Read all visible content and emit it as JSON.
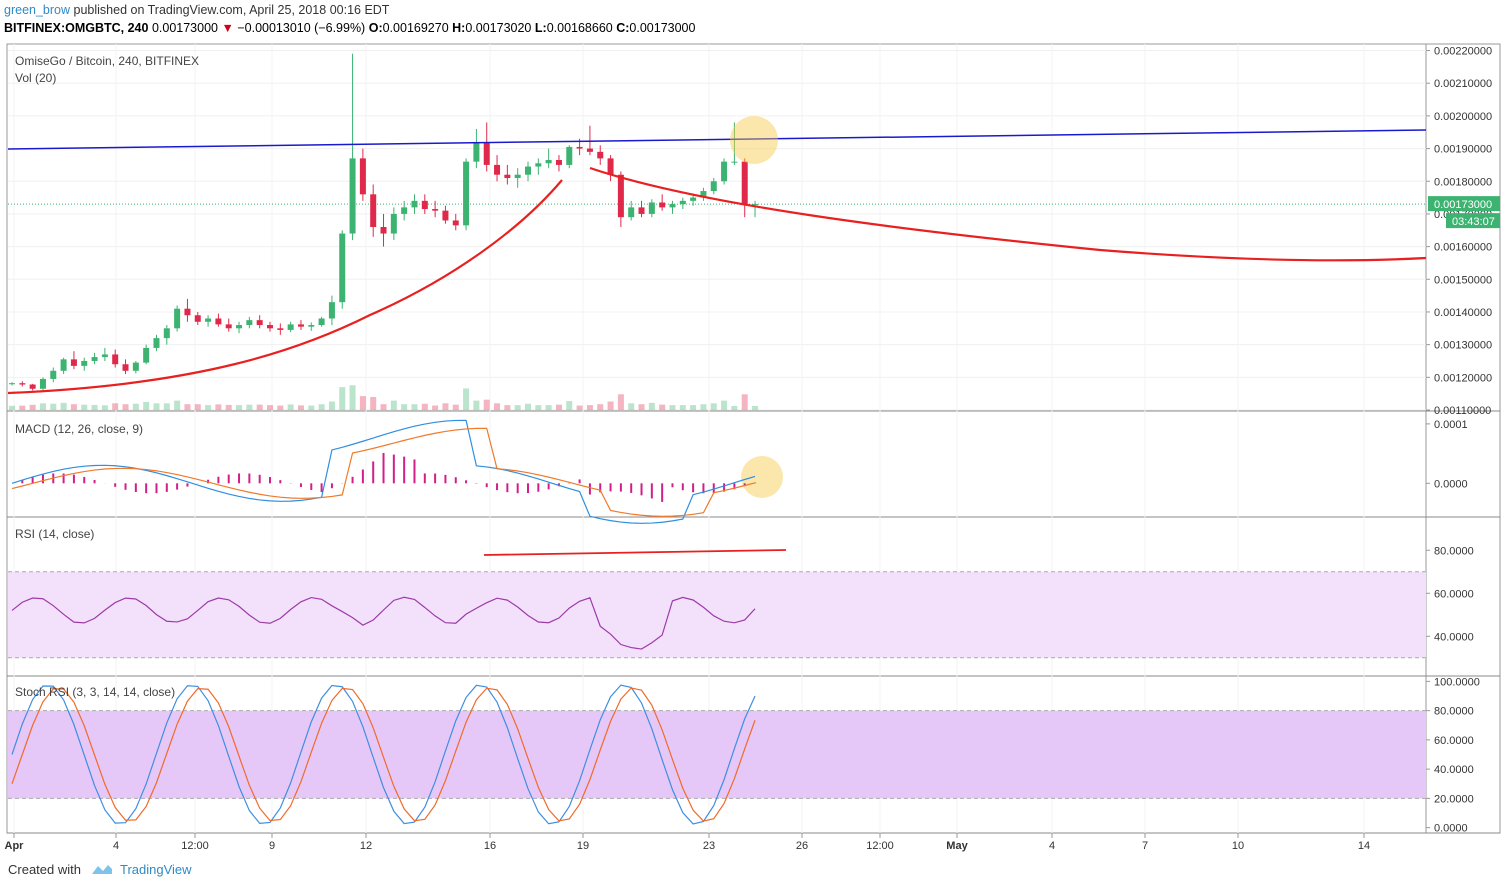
{
  "header": {
    "user": "green_brow",
    "published": "published on TradingView.com, April 25, 2018 00:16 EDT",
    "symbol": "BITFINEX:OMGBTC, 240",
    "last": "0.00173000",
    "change_arrow": "▼",
    "change": "−0.00013010 (−6.99%)",
    "o_label": "O:",
    "o": "0.00169270",
    "h_label": "H:",
    "h": "0.00173020",
    "l_label": "L:",
    "l": "0.00168660",
    "c_label": "C:",
    "c": "0.00173000"
  },
  "footer": {
    "created": "Created with",
    "brand": "TradingView"
  },
  "colors": {
    "up": "#3cb371",
    "down": "#e0294a",
    "trend_blue": "#1a1acd",
    "trend_red": "#e82020",
    "macd": "#2f8fe0",
    "signal": "#f07a2a",
    "hist": "#d31e8a",
    "rsi": "#9c3ba8",
    "rsi_band": "#f3e1fb",
    "stoch_band": "#e6c8f8",
    "stoch_k": "#3f8ee0",
    "stoch_d": "#f06a2a",
    "highlight": "#f7c948"
  },
  "chart_data": {
    "type": "candlestick",
    "title": "OmiseGo / Bitcoin, 240, BITFINEX",
    "volume_label": "Vol (20)",
    "price_axis_ticks": [
      "0.00220000",
      "0.00210000",
      "0.00200000",
      "0.00190000",
      "0.00180000",
      "0.00170000",
      "0.00160000",
      "0.00150000",
      "0.00140000",
      "0.00130000",
      "0.00120000",
      "0.00110000"
    ],
    "price_range": [
      0.0011,
      0.00222
    ],
    "last_price_tag": "0.00173000",
    "countdown_tag": "03:43:07",
    "x_axis_ticks": [
      "Apr",
      "4",
      "12:00",
      "9",
      "12",
      "16",
      "19",
      "23",
      "26",
      "12:00",
      "May",
      "4",
      "7",
      "10",
      "14"
    ],
    "candles": [
      [
        0.00118,
        0.001185,
        0.001175,
        0.001182
      ],
      [
        0.001182,
        0.001188,
        0.001172,
        0.001178
      ],
      [
        0.001178,
        0.00118,
        0.00116,
        0.001165
      ],
      [
        0.001165,
        0.0012,
        0.00116,
        0.001195
      ],
      [
        0.001195,
        0.00123,
        0.001185,
        0.00122
      ],
      [
        0.00122,
        0.00126,
        0.00121,
        0.001255
      ],
      [
        0.001255,
        0.00128,
        0.001225,
        0.001235
      ],
      [
        0.001235,
        0.00126,
        0.00122,
        0.00125
      ],
      [
        0.00125,
        0.001275,
        0.00124,
        0.001262
      ],
      [
        0.001262,
        0.00129,
        0.00125,
        0.00127
      ],
      [
        0.00127,
        0.001285,
        0.00123,
        0.00124
      ],
      [
        0.00124,
        0.001255,
        0.00121,
        0.00122
      ],
      [
        0.00122,
        0.00125,
        0.001212,
        0.001245
      ],
      [
        0.001245,
        0.0013,
        0.00124,
        0.00129
      ],
      [
        0.00129,
        0.00133,
        0.00128,
        0.00132
      ],
      [
        0.00132,
        0.00136,
        0.0013,
        0.00135
      ],
      [
        0.00135,
        0.00142,
        0.00134,
        0.00141
      ],
      [
        0.00141,
        0.00144,
        0.00137,
        0.00139
      ],
      [
        0.00139,
        0.0014,
        0.00136,
        0.00137
      ],
      [
        0.00137,
        0.00139,
        0.001355,
        0.00138
      ],
      [
        0.00138,
        0.001395,
        0.001355,
        0.001362
      ],
      [
        0.001362,
        0.00138,
        0.00134,
        0.00135
      ],
      [
        0.00135,
        0.00137,
        0.001335,
        0.00136
      ],
      [
        0.00136,
        0.001385,
        0.00135,
        0.001375
      ],
      [
        0.001375,
        0.00139,
        0.00135,
        0.00136
      ],
      [
        0.00136,
        0.00137,
        0.00134,
        0.00135
      ],
      [
        0.00135,
        0.001365,
        0.00133,
        0.001345
      ],
      [
        0.001345,
        0.00137,
        0.001338,
        0.001362
      ],
      [
        0.001362,
        0.001375,
        0.001345,
        0.001355
      ],
      [
        0.001355,
        0.001368,
        0.001342,
        0.00136
      ],
      [
        0.00136,
        0.001385,
        0.001355,
        0.00138
      ],
      [
        0.00138,
        0.00145,
        0.00136,
        0.00143
      ],
      [
        0.00143,
        0.00165,
        0.00141,
        0.00164
      ],
      [
        0.00164,
        0.00219,
        0.00162,
        0.00187
      ],
      [
        0.00187,
        0.0019,
        0.00174,
        0.00176
      ],
      [
        0.00176,
        0.00179,
        0.00163,
        0.00166
      ],
      [
        0.00166,
        0.0017,
        0.0016,
        0.00164
      ],
      [
        0.00164,
        0.00172,
        0.00162,
        0.0017
      ],
      [
        0.0017,
        0.00174,
        0.00168,
        0.00172
      ],
      [
        0.00172,
        0.00176,
        0.0017,
        0.00174
      ],
      [
        0.00174,
        0.00176,
        0.0017,
        0.001715
      ],
      [
        0.001715,
        0.00174,
        0.00169,
        0.00171
      ],
      [
        0.00171,
        0.001725,
        0.00167,
        0.00168
      ],
      [
        0.00168,
        0.0017,
        0.00165,
        0.001665
      ],
      [
        0.001665,
        0.00187,
        0.00165,
        0.00186
      ],
      [
        0.00186,
        0.00196,
        0.00184,
        0.00192
      ],
      [
        0.00192,
        0.00198,
        0.00183,
        0.00185
      ],
      [
        0.00185,
        0.00188,
        0.0018,
        0.00182
      ],
      [
        0.00182,
        0.00185,
        0.00179,
        0.00181
      ],
      [
        0.00181,
        0.00184,
        0.00178,
        0.00182
      ],
      [
        0.00182,
        0.00186,
        0.0018,
        0.001845
      ],
      [
        0.001845,
        0.00187,
        0.00182,
        0.001855
      ],
      [
        0.001855,
        0.0019,
        0.00184,
        0.001865
      ],
      [
        0.001865,
        0.00188,
        0.00183,
        0.00185
      ],
      [
        0.00185,
        0.00191,
        0.00184,
        0.001905
      ],
      [
        0.001905,
        0.00193,
        0.00188,
        0.0019
      ],
      [
        0.0019,
        0.00197,
        0.00188,
        0.00189
      ],
      [
        0.00189,
        0.00191,
        0.00185,
        0.00187
      ],
      [
        0.00187,
        0.00188,
        0.0018,
        0.00182
      ],
      [
        0.00182,
        0.00183,
        0.00166,
        0.00169
      ],
      [
        0.00169,
        0.00174,
        0.00168,
        0.00172
      ],
      [
        0.00172,
        0.00174,
        0.00169,
        0.0017
      ],
      [
        0.0017,
        0.001745,
        0.00169,
        0.001735
      ],
      [
        0.001735,
        0.00176,
        0.00171,
        0.00172
      ],
      [
        0.00172,
        0.00174,
        0.0017,
        0.00173
      ],
      [
        0.00173,
        0.00175,
        0.001715,
        0.00174
      ],
      [
        0.00174,
        0.00176,
        0.001725,
        0.00175
      ],
      [
        0.00175,
        0.00178,
        0.00174,
        0.00177
      ],
      [
        0.00177,
        0.00181,
        0.00176,
        0.0018
      ],
      [
        0.0018,
        0.00187,
        0.00179,
        0.00186
      ],
      [
        0.00186,
        0.00198,
        0.00185,
        0.00186
      ],
      [
        0.00186,
        0.00187,
        0.00169,
        0.00173
      ],
      [
        0.00173,
        0.00174,
        0.00169,
        0.00173
      ]
    ],
    "trendlines": [
      {
        "name": "resistance",
        "points": [
          [
            0,
            0.001915
          ],
          [
            1424,
            0.001975
          ]
        ]
      },
      {
        "name": "support-curve",
        "note": "curved arc"
      }
    ],
    "panels": [
      {
        "label": "MACD (12, 26, close, 9)",
        "ticks": [
          "0.0001",
          "0.0000"
        ]
      },
      {
        "label": "RSI (14, close)",
        "ticks": [
          "80.0000",
          "60.0000",
          "40.0000"
        ],
        "band": [
          30,
          70
        ]
      },
      {
        "label": "Stoch RSI (3, 3, 14, 14, close)",
        "ticks": [
          "100.0000",
          "80.0000",
          "60.0000",
          "40.0000",
          "20.0000",
          "0.0000"
        ],
        "band": [
          20,
          80
        ]
      }
    ]
  }
}
